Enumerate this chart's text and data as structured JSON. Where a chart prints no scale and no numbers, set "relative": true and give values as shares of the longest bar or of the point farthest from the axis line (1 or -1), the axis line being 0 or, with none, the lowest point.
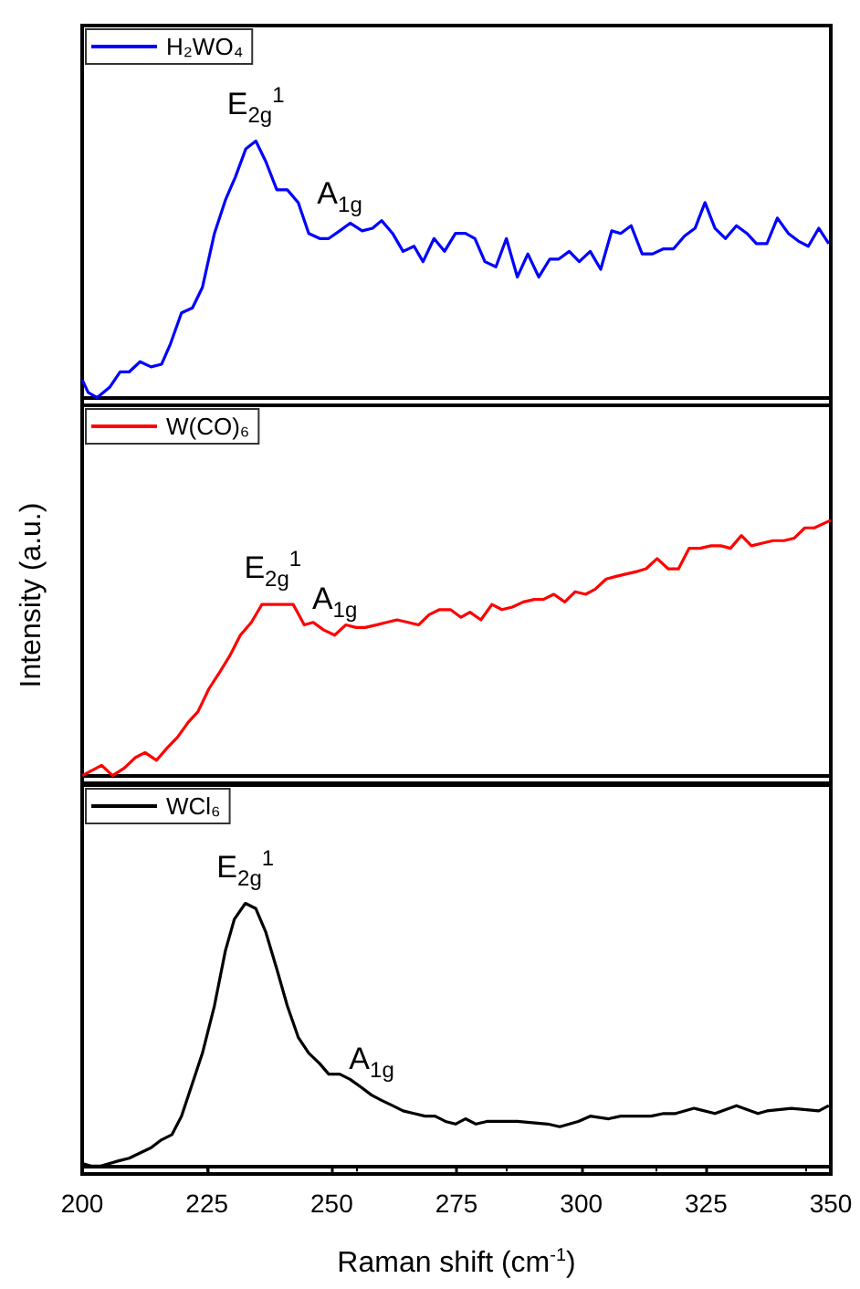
{
  "chart_data": [
    {
      "type": "line",
      "marker": "none",
      "relative": true,
      "legend": "top left",
      "tick_labels": false,
      "xlim": [
        200,
        350
      ],
      "xticks": [
        200,
        225,
        250,
        275,
        300,
        325,
        350
      ],
      "annotations": [
        {
          "text": "E$_{2g}$$^{1}$",
          "x": 234.8,
          "y": 1.0
        },
        {
          "text": "A$_{1g}$",
          "x": 251.6,
          "y": 0.65
        }
      ],
      "series": [
        {
          "name": "H₂WO₄",
          "color": "#0000ff",
          "x": [
            200.0,
            201.2,
            203.0,
            205.5,
            207.6,
            209.4,
            211.6,
            213.8,
            215.9,
            217.7,
            219.9,
            222.1,
            224.1,
            226.5,
            228.7,
            230.7,
            232.8,
            234.8,
            236.8,
            239.0,
            241.1,
            243.3,
            245.4,
            247.6,
            249.4,
            251.6,
            253.7,
            256.1,
            258.2,
            260.0,
            262.2,
            264.3,
            266.5,
            268.3,
            270.5,
            272.6,
            274.8,
            276.8,
            278.7,
            280.7,
            282.9,
            285.0,
            287.2,
            289.3,
            291.5,
            293.7,
            295.5,
            297.6,
            299.6,
            301.8,
            303.9,
            306.1,
            307.9,
            310.0,
            312.2,
            314.3,
            316.5,
            318.5,
            320.7,
            322.8,
            324.8,
            326.8,
            328.9,
            331.1,
            333.2,
            335.1,
            337.2,
            339.3,
            341.5,
            343.5,
            345.5,
            347.6,
            349.6
          ],
          "values": [
            0.07,
            0.02,
            0,
            0.04,
            0.1,
            0.1,
            0.14,
            0.12,
            0.13,
            0.21,
            0.33,
            0.35,
            0.43,
            0.64,
            0.77,
            0.86,
            0.97,
            1.0,
            0.92,
            0.81,
            0.81,
            0.76,
            0.64,
            0.62,
            0.62,
            0.65,
            0.68,
            0.65,
            0.66,
            0.69,
            0.64,
            0.57,
            0.59,
            0.53,
            0.62,
            0.57,
            0.64,
            0.64,
            0.62,
            0.53,
            0.51,
            0.62,
            0.47,
            0.56,
            0.47,
            0.54,
            0.54,
            0.57,
            0.53,
            0.57,
            0.5,
            0.65,
            0.64,
            0.67,
            0.56,
            0.56,
            0.58,
            0.58,
            0.63,
            0.66,
            0.76,
            0.66,
            0.62,
            0.67,
            0.64,
            0.6,
            0.6,
            0.7,
            0.64,
            0.61,
            0.59,
            0.66,
            0.6
          ]
        }
      ]
    },
    {
      "type": "line",
      "marker": "none",
      "relative": true,
      "legend": "top left",
      "tick_labels": false,
      "ylabel": "Intensity (a.u.)",
      "xlim": [
        200,
        350
      ],
      "xticks": [
        200,
        225,
        250,
        275,
        300,
        325,
        350
      ],
      "annotations": [
        {
          "text": "E$_{2g}$$^{1}$",
          "x": 238.2,
          "y": 0.67
        },
        {
          "text": "A$_{1g}$",
          "x": 250.6,
          "y": 0.55
        }
      ],
      "series": [
        {
          "name": "W(CO)₆",
          "color": "#ff0000",
          "x": [
            200.0,
            203.9,
            206.1,
            208.5,
            210.6,
            212.6,
            214.9,
            217.1,
            219.1,
            221.3,
            223.2,
            225.4,
            227.4,
            229.6,
            231.7,
            233.9,
            236.0,
            238.2,
            240.2,
            242.3,
            244.5,
            246.3,
            248.4,
            250.6,
            252.8,
            254.9,
            256.7,
            258.9,
            261.0,
            263.1,
            265.3,
            267.4,
            269.5,
            271.6,
            273.8,
            275.9,
            277.7,
            279.9,
            282.1,
            284.1,
            286.2,
            288.4,
            290.6,
            292.4,
            294.5,
            296.7,
            298.8,
            300.9,
            302.8,
            305.0,
            307.0,
            309.1,
            311.3,
            313.0,
            315.2,
            317.4,
            319.5,
            321.6,
            323.8,
            326.0,
            328.0,
            329.9,
            332.1,
            334.1,
            336.3,
            338.4,
            340.6,
            342.7,
            344.8,
            346.7,
            350.0
          ],
          "values": [
            0.0,
            0.04,
            0.0,
            0.03,
            0.07,
            0.09,
            0.06,
            0.11,
            0.15,
            0.21,
            0.25,
            0.34,
            0.4,
            0.47,
            0.55,
            0.6,
            0.67,
            0.67,
            0.67,
            0.67,
            0.59,
            0.6,
            0.57,
            0.55,
            0.59,
            0.58,
            0.58,
            0.59,
            0.6,
            0.61,
            0.6,
            0.59,
            0.63,
            0.65,
            0.65,
            0.62,
            0.64,
            0.61,
            0.67,
            0.65,
            0.66,
            0.68,
            0.69,
            0.69,
            0.71,
            0.68,
            0.72,
            0.71,
            0.73,
            0.77,
            0.78,
            0.79,
            0.8,
            0.81,
            0.85,
            0.81,
            0.81,
            0.89,
            0.89,
            0.9,
            0.9,
            0.89,
            0.94,
            0.9,
            0.91,
            0.92,
            0.92,
            0.93,
            0.97,
            0.97,
            1.0
          ]
        }
      ]
    },
    {
      "type": "line",
      "marker": "none",
      "relative": true,
      "legend": "top left",
      "tick_labels": "x",
      "xlabel": "Raman shift (cm$^{-1}$)",
      "xlim": [
        200,
        350
      ],
      "xticks": [
        200,
        225,
        250,
        275,
        300,
        325,
        350
      ],
      "annotations": [
        {
          "text": "E$_{2g}$$^{1}$",
          "x": 232.7,
          "y": 1.0
        },
        {
          "text": "A$_{1g}$",
          "x": 258.0,
          "y": 0.27
        }
      ],
      "series": [
        {
          "name": "WCl₆",
          "color": "#000000",
          "x": [
            200.0,
            201.8,
            203.7,
            205.5,
            207.3,
            209.4,
            211.6,
            213.8,
            215.9,
            218.0,
            219.9,
            222.0,
            224.1,
            226.5,
            228.7,
            230.5,
            232.7,
            234.8,
            236.8,
            239.0,
            241.1,
            243.3,
            245.4,
            247.6,
            249.4,
            251.6,
            253.7,
            255.9,
            258.0,
            260.0,
            262.2,
            264.3,
            266.5,
            268.7,
            270.7,
            272.8,
            274.8,
            276.8,
            278.9,
            281.1,
            287.2,
            293.3,
            295.7,
            299.4,
            301.8,
            305.5,
            307.9,
            314.0,
            316.5,
            318.9,
            322.6,
            326.8,
            331.1,
            335.4,
            337.2,
            342.1,
            347.6,
            349.6
          ],
          "values": [
            0.01,
            0.0,
            0.0,
            0.01,
            0.02,
            0.03,
            0.05,
            0.07,
            0.1,
            0.12,
            0.19,
            0.31,
            0.43,
            0.61,
            0.82,
            0.94,
            1.0,
            0.98,
            0.89,
            0.75,
            0.61,
            0.49,
            0.43,
            0.39,
            0.35,
            0.35,
            0.33,
            0.3,
            0.27,
            0.25,
            0.23,
            0.21,
            0.2,
            0.19,
            0.19,
            0.17,
            0.16,
            0.18,
            0.16,
            0.17,
            0.17,
            0.16,
            0.15,
            0.17,
            0.19,
            0.18,
            0.19,
            0.19,
            0.2,
            0.2,
            0.22,
            0.2,
            0.23,
            0.2,
            0.21,
            0.22,
            0.21,
            0.23
          ]
        }
      ]
    }
  ]
}
